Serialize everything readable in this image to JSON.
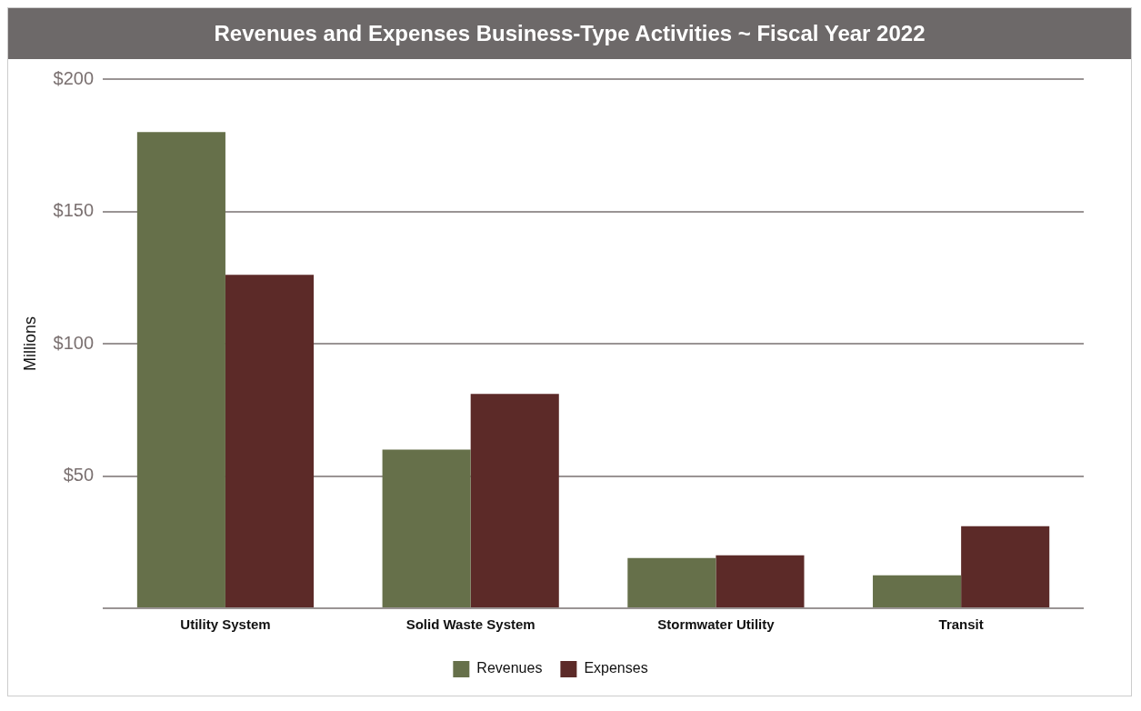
{
  "chart_data": {
    "type": "bar",
    "title": "Revenues and Expenses Business-Type Activities ~ Fiscal Year 2022",
    "ylabel": "Millions",
    "categories": [
      "Utility System",
      "Solid Waste System",
      "Stormwater Utility",
      "Transit"
    ],
    "series": [
      {
        "name": "Revenues",
        "color": "#66704a",
        "values": [
          180,
          60,
          19,
          12.5
        ]
      },
      {
        "name": "Expenses",
        "color": "#5c2a28",
        "values": [
          126,
          81,
          20,
          31
        ]
      }
    ],
    "ylim": [
      0,
      200
    ],
    "yticks": [
      {
        "value": 0,
        "label": null
      },
      {
        "value": 50,
        "label": "$50"
      },
      {
        "value": 100,
        "label": "$100"
      },
      {
        "value": 150,
        "label": "$150"
      },
      {
        "value": 200,
        "label": "$200"
      }
    ],
    "grid": "y",
    "legend": "bottom"
  }
}
